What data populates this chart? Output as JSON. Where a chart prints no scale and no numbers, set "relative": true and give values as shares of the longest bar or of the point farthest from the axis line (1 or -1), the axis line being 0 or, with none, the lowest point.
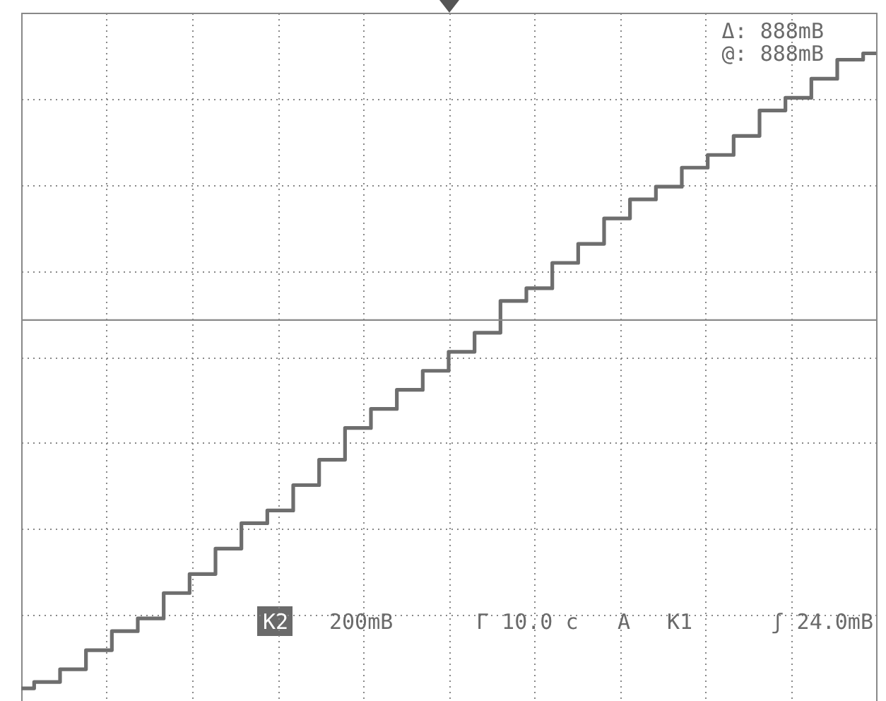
{
  "chart_data": {
    "type": "step",
    "relative": true,
    "categories": [
      null,
      null,
      null,
      null,
      null,
      null,
      null,
      null,
      null,
      null,
      null,
      null,
      null,
      null,
      null,
      null,
      null,
      null,
      null,
      null,
      null,
      null,
      null,
      null,
      null,
      null,
      null,
      null,
      null,
      null,
      null,
      null,
      null,
      null
    ],
    "series": [
      {
        "color": "#6e6e6e",
        "values": [
          0,
          0.01,
          0.03,
          0.06,
          0.09,
          0.11,
          0.15,
          0.18,
          0.22,
          0.26,
          0.28,
          0.32,
          0.36,
          0.41,
          0.44,
          0.47,
          0.5,
          0.53,
          0.56,
          0.61,
          0.63,
          0.67,
          0.7,
          0.74,
          0.77,
          0.79,
          0.82,
          0.84,
          0.87,
          0.91,
          0.93,
          0.96,
          0.99,
          1
        ]
      }
    ],
    "ref_lines": [
      {
        "axis": "y",
        "value": 0.58,
        "color": "#8a8a8a"
      }
    ],
    "grid": true,
    "annotations": [
      "Δ:   888mB",
      "@:   888mB",
      "K2",
      "200mB",
      "Γ 10.0 c",
      "A",
      "K1",
      "ʃ 24.0mB"
    ]
  }
}
